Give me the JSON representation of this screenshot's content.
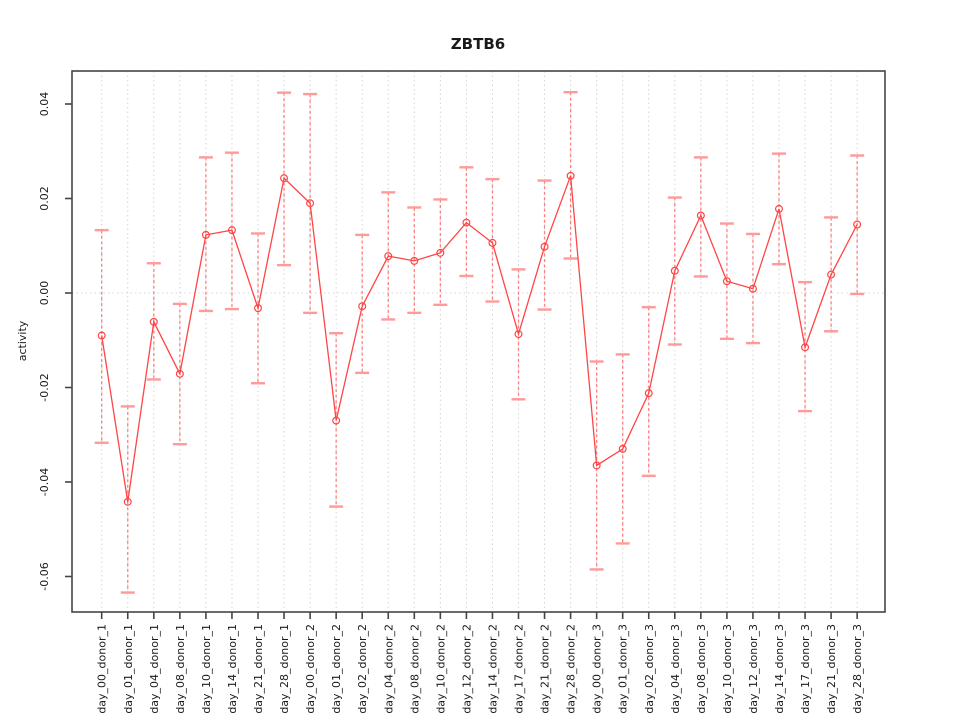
{
  "title": "ZBTB6",
  "chart_data": {
    "type": "line",
    "title": "ZBTB6",
    "xlabel": "",
    "ylabel": "activity",
    "ylim": [
      -0.065,
      0.045
    ],
    "grid": "vertical dotted gridline at every category; dotted horizontal line at y=0",
    "legend": "none",
    "marker": "open-circle",
    "error_bars": true,
    "yticks": [
      {
        "value": 0.04,
        "label": "0.04"
      },
      {
        "value": 0.02,
        "label": "0.02"
      },
      {
        "value": 0.0,
        "label": "0.00"
      },
      {
        "value": -0.02,
        "label": "-0.02"
      },
      {
        "value": -0.04,
        "label": "-0.04"
      },
      {
        "value": -0.06,
        "label": "-0.06"
      }
    ],
    "categories": [
      "day_00_donor_1",
      "day_01_donor_1",
      "day_04_donor_1",
      "day_08_donor_1",
      "day_10_donor_1",
      "day_14_donor_1",
      "day_21_donor_1",
      "day_28_donor_1",
      "day_00_donor_2",
      "day_01_donor_2",
      "day_02_donor_2",
      "day_04_donor_2",
      "day_08_donor_2",
      "day_10_donor_2",
      "day_12_donor_2",
      "day_14_donor_2",
      "day_17_donor_2",
      "day_21_donor_2",
      "day_28_donor_2",
      "day_00_donor_3",
      "day_01_donor_3",
      "day_02_donor_3",
      "day_04_donor_3",
      "day_08_donor_3",
      "day_10_donor_3",
      "day_12_donor_3",
      "day_14_donor_3",
      "day_17_donor_3",
      "day_21_donor_3",
      "day_28_donor_3"
    ],
    "series": [
      {
        "name": "activity",
        "values": [
          -0.009,
          -0.0442,
          -0.0061,
          -0.0171,
          0.0123,
          0.0133,
          -0.0032,
          0.0243,
          0.019,
          -0.027,
          -0.0028,
          0.0078,
          0.0068,
          0.0085,
          0.0149,
          0.0106,
          -0.0087,
          0.0098,
          0.0248,
          -0.0365,
          -0.033,
          -0.0212,
          0.0047,
          0.0164,
          0.0025,
          0.0009,
          0.0178,
          -0.0115,
          0.0039,
          0.0145
        ],
        "ci_low": [
          -0.0317,
          -0.0634,
          -0.0183,
          -0.032,
          -0.0038,
          -0.0034,
          -0.0191,
          0.0059,
          -0.0042,
          -0.0452,
          -0.0169,
          -0.0056,
          -0.0042,
          -0.0025,
          0.0036,
          -0.0018,
          -0.0225,
          -0.0035,
          0.0073,
          -0.0585,
          -0.053,
          -0.0387,
          -0.0109,
          0.0035,
          -0.0097,
          -0.0106,
          0.0061,
          -0.025,
          -0.0081,
          -0.0002
        ],
        "ci_high": [
          0.0133,
          -0.024,
          0.0063,
          -0.0023,
          0.0287,
          0.0297,
          0.0126,
          0.0424,
          0.0421,
          -0.0085,
          0.0123,
          0.0213,
          0.0181,
          0.0198,
          0.0266,
          0.0241,
          0.005,
          0.0238,
          0.0425,
          -0.0145,
          -0.013,
          -0.003,
          0.0202,
          0.0287,
          0.0147,
          0.0125,
          0.0295,
          0.0023,
          0.016,
          0.0291
        ]
      }
    ],
    "colors": {
      "line": "#ff4545",
      "point": "#ff4545",
      "error_bar": "#ff8080",
      "error_cap": "#ff9a9a",
      "grid": "#d4d4d4",
      "axis": "#454545"
    }
  }
}
